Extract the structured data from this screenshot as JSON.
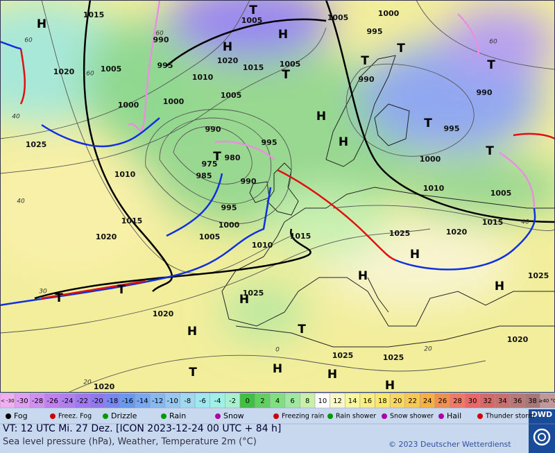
{
  "map": {
    "pressure_labels": [
      1015,
      1005,
      1005,
      1000,
      995,
      990,
      1020,
      1005,
      995,
      1020,
      1015,
      1005,
      1010,
      1000,
      1000,
      1005,
      990,
      990,
      995,
      1000,
      1010,
      1005,
      1015,
      1025,
      1010,
      990,
      995,
      975,
      980,
      985,
      990,
      995,
      1000,
      1005,
      1010,
      1015,
      1020,
      1015,
      1025,
      1020,
      1025,
      1025,
      1020,
      1025,
      1025,
      1020,
      1020
    ],
    "systems": [
      "H",
      "H",
      "H",
      "H",
      "H",
      "H",
      "H",
      "H",
      "H",
      "H",
      "H",
      "H",
      "H",
      "T",
      "T",
      "T",
      "T",
      "T",
      "T",
      "T",
      "T",
      "T",
      "T",
      "T",
      "T"
    ],
    "temperature_labels": [
      60,
      60,
      60,
      60,
      40,
      40,
      40,
      30,
      20,
      20,
      0
    ]
  },
  "scale": [
    {
      "label": "< -30",
      "color": "#f0b0f0"
    },
    {
      "label": "-30",
      "color": "#e0a0f0"
    },
    {
      "label": "-28",
      "color": "#d090f0"
    },
    {
      "label": "-26",
      "color": "#c080f0"
    },
    {
      "label": "-24",
      "color": "#b080f0"
    },
    {
      "label": "-22",
      "color": "#a078f0"
    },
    {
      "label": "-20",
      "color": "#9078f0"
    },
    {
      "label": "-18",
      "color": "#7888f0"
    },
    {
      "label": "-16",
      "color": "#6898f0"
    },
    {
      "label": "-14",
      "color": "#78a8f0"
    },
    {
      "label": "-12",
      "color": "#88b8f0"
    },
    {
      "label": "-10",
      "color": "#98c8f0"
    },
    {
      "label": "-8",
      "color": "#a0d8f0"
    },
    {
      "label": "-6",
      "color": "#a0e8f0"
    },
    {
      "label": "-4",
      "color": "#a0f0e8"
    },
    {
      "label": "-2",
      "color": "#a8f0d0"
    },
    {
      "label": "0",
      "color": "#40c040"
    },
    {
      "label": "2",
      "color": "#60d060"
    },
    {
      "label": "4",
      "color": "#80e080"
    },
    {
      "label": "6",
      "color": "#a0e8a0"
    },
    {
      "label": "8",
      "color": "#c8f0a8"
    },
    {
      "label": "10",
      "color": "#ffffff"
    },
    {
      "label": "12",
      "color": "#f8f8c8"
    },
    {
      "label": "14",
      "color": "#f8f8a0"
    },
    {
      "label": "16",
      "color": "#f8f080"
    },
    {
      "label": "18",
      "color": "#f8e870"
    },
    {
      "label": "20",
      "color": "#f8d860"
    },
    {
      "label": "22",
      "color": "#f8c850"
    },
    {
      "label": "24",
      "color": "#f8b040"
    },
    {
      "label": "26",
      "color": "#f09050"
    },
    {
      "label": "28",
      "color": "#f07868"
    },
    {
      "label": "30",
      "color": "#e86868"
    },
    {
      "label": "32",
      "color": "#d86868"
    },
    {
      "label": "34",
      "color": "#c87070"
    },
    {
      "label": "36",
      "color": "#b87878"
    },
    {
      "label": "38",
      "color": "#a87878"
    },
    {
      "label": "≥40 °C",
      "color": "#c09898"
    }
  ],
  "legend": [
    "Fog",
    "Freez. Fog",
    "Drizzle",
    "Rain",
    "Snow",
    "Freezing rain",
    "Rain shower",
    "Snow shower",
    "Hail",
    "Thunder storm"
  ],
  "footer": {
    "valid_time": "VT: 12 UTC Mi.  27 Dez. [ICON 2023-12-24  00 UTC + 84 h]",
    "description": "Sea level pressure (hPa), Weather, Temperature 2m (°C)",
    "copyright": "© 2023 Deutscher Wetterdienst",
    "logo": "DWD"
  }
}
